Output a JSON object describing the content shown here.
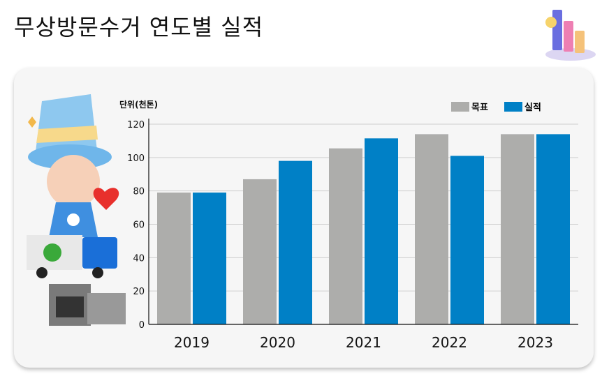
{
  "page": {
    "title": "무상방문수거 연도별 실적"
  },
  "icons": {
    "header": "bar-chart-icon",
    "illustration": "wizard-mascot-with-truck-and-appliances"
  },
  "chart_data": {
    "type": "bar",
    "unit_label": "단위(천톤)",
    "categories": [
      "2019",
      "2020",
      "2021",
      "2022",
      "2023"
    ],
    "series": [
      {
        "name": "목표",
        "color": "#adadab",
        "values": [
          79,
          87,
          105.5,
          114,
          114
        ]
      },
      {
        "name": "실적",
        "color": "#0080c6",
        "values": [
          79,
          98,
          111.5,
          101,
          114
        ]
      }
    ],
    "ylim": [
      0,
      120
    ],
    "yticks": [
      0,
      20,
      40,
      60,
      80,
      100,
      120
    ],
    "grid": true,
    "legend": "top-right"
  }
}
